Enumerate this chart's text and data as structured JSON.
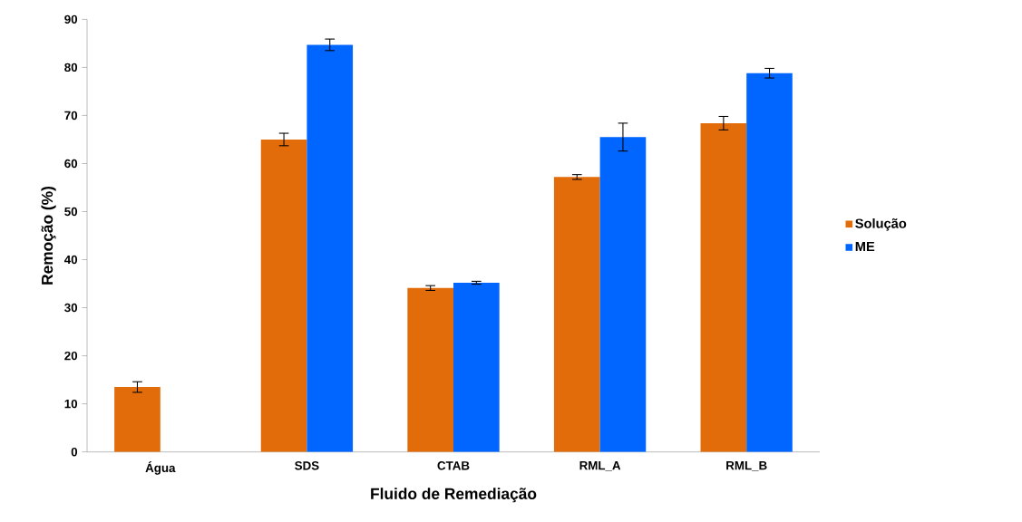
{
  "chart_data": {
    "type": "bar",
    "xlabel": "Fluido de Remediação",
    "ylabel": "Remoção (%)",
    "categories": [
      "Água",
      "SDS",
      "CTAB",
      "RML_A",
      "RML_B"
    ],
    "series": [
      {
        "name": "Solução",
        "color": "#e36c0a",
        "values": [
          13.5,
          65.0,
          34.1,
          57.2,
          68.4
        ],
        "errors": [
          1.1,
          1.3,
          0.5,
          0.5,
          1.4
        ]
      },
      {
        "name": "ME",
        "color": "#0066ff",
        "values": [
          null,
          84.7,
          35.2,
          65.5,
          78.8
        ],
        "errors": [
          null,
          1.2,
          0.3,
          2.9,
          1.0
        ]
      }
    ],
    "ylim": [
      0,
      90
    ],
    "yticks": [
      0,
      10,
      20,
      30,
      40,
      50,
      60,
      70,
      80,
      90
    ],
    "grid": false,
    "legend": "right"
  }
}
